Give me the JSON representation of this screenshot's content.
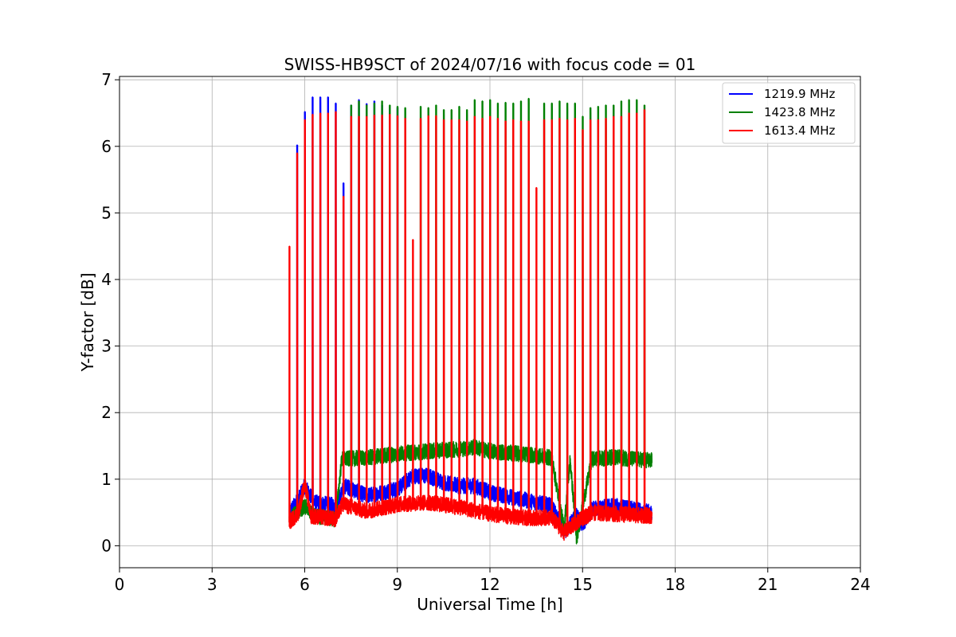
{
  "chart_data": {
    "type": "line",
    "title": "SWISS-HB9SCT of 2024/07/16 with focus code = 01",
    "xlabel": "Universal Time [h]",
    "ylabel": "Y-factor [dB]",
    "xlim": [
      0,
      24
    ],
    "ylim": [
      -0.33,
      7.05
    ],
    "xticks": [
      0,
      3,
      6,
      9,
      12,
      15,
      18,
      21,
      24
    ],
    "yticks": [
      0,
      1,
      2,
      3,
      4,
      5,
      6,
      7
    ],
    "grid": true,
    "legend_position": "top-right",
    "series": [
      {
        "name": "1219.9 MHz",
        "color": "#0000ff",
        "data_start": 5.5,
        "data_end": 17.25,
        "baseline": [
          [
            5.5,
            0.5
          ],
          [
            5.8,
            0.7
          ],
          [
            6.0,
            0.9
          ],
          [
            6.3,
            0.65
          ],
          [
            7.0,
            0.6
          ],
          [
            7.3,
            0.9
          ],
          [
            8.0,
            0.75
          ],
          [
            9.0,
            0.85
          ],
          [
            9.5,
            1.05
          ],
          [
            10.0,
            1.05
          ],
          [
            10.5,
            0.95
          ],
          [
            11.0,
            0.9
          ],
          [
            11.5,
            0.9
          ],
          [
            12.0,
            0.8
          ],
          [
            13.0,
            0.7
          ],
          [
            14.0,
            0.6
          ],
          [
            14.4,
            0.2
          ],
          [
            14.8,
            0.45
          ],
          [
            15.0,
            0.3
          ],
          [
            15.3,
            0.55
          ],
          [
            16.0,
            0.6
          ],
          [
            17.2,
            0.5
          ]
        ],
        "noise": 0.12,
        "peaks": [
          [
            5.75,
            6.02
          ],
          [
            6.0,
            6.52
          ],
          [
            6.25,
            6.74
          ],
          [
            6.5,
            6.74
          ],
          [
            6.75,
            6.74
          ],
          [
            7.0,
            6.65
          ],
          [
            7.25,
            5.45
          ],
          [
            7.5,
            6.62
          ],
          [
            7.75,
            6.7
          ],
          [
            8.0,
            6.64
          ],
          [
            8.25,
            6.68
          ],
          [
            8.5,
            6.62
          ],
          [
            8.75,
            6.6
          ],
          [
            9.0,
            6.58
          ]
        ]
      },
      {
        "name": "1423.8 MHz",
        "color": "#008000",
        "data_start": 5.5,
        "data_end": 17.25,
        "baseline": [
          [
            5.5,
            0.4
          ],
          [
            6.0,
            0.6
          ],
          [
            6.3,
            0.45
          ],
          [
            7.0,
            0.4
          ],
          [
            7.2,
            1.3
          ],
          [
            8.0,
            1.32
          ],
          [
            9.0,
            1.38
          ],
          [
            10.0,
            1.42
          ],
          [
            11.0,
            1.45
          ],
          [
            11.5,
            1.48
          ],
          [
            12.0,
            1.42
          ],
          [
            13.0,
            1.38
          ],
          [
            14.0,
            1.32
          ],
          [
            14.4,
            0.25
          ],
          [
            14.6,
            1.3
          ],
          [
            14.8,
            0.1
          ],
          [
            15.3,
            1.3
          ],
          [
            16.0,
            1.33
          ],
          [
            17.2,
            1.28
          ]
        ],
        "noise": 0.12,
        "peaks": [
          [
            7.5,
            6.62
          ],
          [
            7.75,
            6.68
          ],
          [
            8.0,
            6.62
          ],
          [
            8.25,
            6.65
          ],
          [
            8.5,
            6.68
          ],
          [
            8.75,
            6.62
          ],
          [
            9.0,
            6.6
          ],
          [
            9.25,
            6.58
          ],
          [
            9.75,
            6.6
          ],
          [
            10.0,
            6.58
          ],
          [
            10.25,
            6.62
          ],
          [
            10.5,
            6.55
          ],
          [
            10.75,
            6.55
          ],
          [
            11.0,
            6.6
          ],
          [
            11.25,
            6.55
          ],
          [
            11.5,
            6.7
          ],
          [
            11.75,
            6.68
          ],
          [
            12.0,
            6.7
          ],
          [
            12.25,
            6.65
          ],
          [
            12.5,
            6.66
          ],
          [
            12.75,
            6.65
          ],
          [
            13.0,
            6.68
          ],
          [
            13.25,
            6.72
          ],
          [
            13.75,
            6.65
          ],
          [
            14.0,
            6.65
          ],
          [
            14.25,
            6.68
          ],
          [
            14.5,
            6.65
          ],
          [
            14.75,
            6.65
          ],
          [
            15.0,
            6.45
          ],
          [
            15.25,
            6.58
          ],
          [
            15.5,
            6.6
          ],
          [
            15.75,
            6.62
          ],
          [
            16.0,
            6.62
          ],
          [
            16.25,
            6.68
          ],
          [
            16.5,
            6.7
          ],
          [
            16.75,
            6.7
          ],
          [
            17.0,
            6.62
          ]
        ]
      },
      {
        "name": "1613.4 MHz",
        "color": "#ff0000",
        "data_start": 5.5,
        "data_end": 17.25,
        "baseline": [
          [
            5.5,
            0.35
          ],
          [
            5.8,
            0.5
          ],
          [
            6.0,
            0.95
          ],
          [
            6.2,
            0.45
          ],
          [
            7.0,
            0.4
          ],
          [
            7.2,
            0.62
          ],
          [
            8.0,
            0.52
          ],
          [
            9.0,
            0.62
          ],
          [
            10.0,
            0.65
          ],
          [
            11.0,
            0.58
          ],
          [
            12.0,
            0.48
          ],
          [
            13.0,
            0.42
          ],
          [
            14.0,
            0.42
          ],
          [
            14.4,
            0.2
          ],
          [
            14.8,
            0.35
          ],
          [
            15.3,
            0.5
          ],
          [
            16.0,
            0.48
          ],
          [
            17.2,
            0.45
          ]
        ],
        "noise": 0.12,
        "peaks": [
          [
            5.5,
            4.5
          ],
          [
            5.75,
            5.9
          ],
          [
            6.0,
            6.4
          ],
          [
            6.25,
            6.48
          ],
          [
            6.5,
            6.5
          ],
          [
            6.75,
            6.5
          ],
          [
            7.0,
            6.52
          ],
          [
            7.25,
            5.25
          ],
          [
            7.5,
            6.45
          ],
          [
            7.75,
            6.45
          ],
          [
            8.0,
            6.45
          ],
          [
            8.25,
            6.47
          ],
          [
            8.5,
            6.47
          ],
          [
            8.75,
            6.48
          ],
          [
            9.0,
            6.46
          ],
          [
            9.25,
            6.42
          ],
          [
            9.5,
            4.6
          ],
          [
            9.75,
            6.42
          ],
          [
            10.0,
            6.46
          ],
          [
            10.25,
            6.46
          ],
          [
            10.5,
            6.4
          ],
          [
            10.75,
            6.4
          ],
          [
            11.0,
            6.4
          ],
          [
            11.25,
            6.38
          ],
          [
            11.5,
            6.45
          ],
          [
            11.75,
            6.42
          ],
          [
            12.0,
            6.45
          ],
          [
            12.25,
            6.42
          ],
          [
            12.5,
            6.38
          ],
          [
            12.75,
            6.4
          ],
          [
            13.0,
            6.38
          ],
          [
            13.25,
            6.38
          ],
          [
            13.5,
            5.38
          ],
          [
            13.75,
            6.4
          ],
          [
            14.0,
            6.4
          ],
          [
            14.25,
            6.42
          ],
          [
            14.5,
            6.4
          ],
          [
            14.75,
            6.42
          ],
          [
            15.0,
            6.25
          ],
          [
            15.25,
            6.4
          ],
          [
            15.5,
            6.4
          ],
          [
            15.75,
            6.42
          ],
          [
            16.0,
            6.45
          ],
          [
            16.25,
            6.45
          ],
          [
            16.5,
            6.5
          ],
          [
            16.75,
            6.5
          ],
          [
            17.0,
            6.55
          ]
        ]
      }
    ]
  }
}
